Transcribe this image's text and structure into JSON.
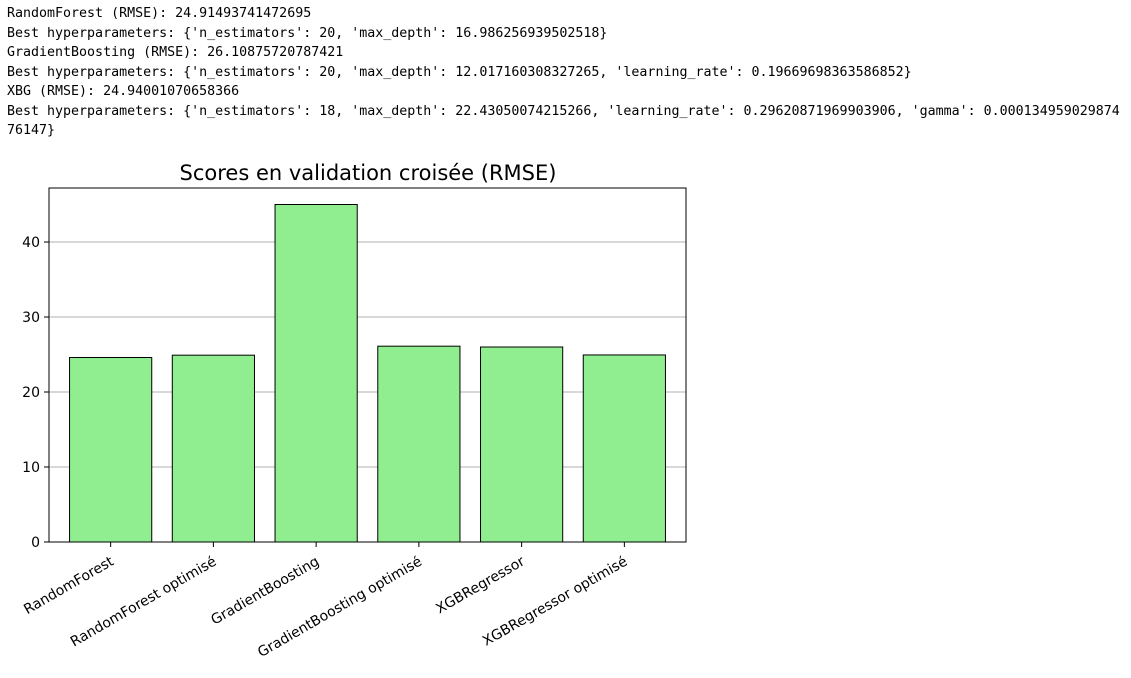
{
  "console": {
    "lines": [
      "RandomForest (RMSE): 24.91493741472695",
      "Best hyperparameters: {'n_estimators': 20, 'max_depth': 16.986256939502518}",
      "GradientBoosting (RMSE): 26.10875720787421",
      "Best hyperparameters: {'n_estimators': 20, 'max_depth': 12.017160308327265, 'learning_rate': 0.19669698363586852}",
      "XBG (RMSE): 24.94001070658366",
      "Best hyperparameters: {'n_estimators': 18, 'max_depth': 22.43050074215266, 'learning_rate': 0.29620871969903906, 'gamma': 0.00013495902987476147}"
    ]
  },
  "chart_data": {
    "type": "bar",
    "title": "Scores en validation croisée (RMSE)",
    "xlabel": "",
    "ylabel": "",
    "categories": [
      "RandomForest",
      "RandomForest optimisé",
      "GradientBoosting",
      "GradientBoosting optimisé",
      "XGBRegressor",
      "XGBRegressor optimisé"
    ],
    "values": [
      24.6,
      24.91,
      45.0,
      26.11,
      26.0,
      24.94
    ],
    "ylim": [
      0,
      47.2
    ],
    "yticks": [
      0,
      10,
      20,
      30,
      40
    ],
    "grid": "y",
    "legend": "none",
    "colors": {
      "bar_fill": "#90ee90",
      "bar_edge": "#000000",
      "grid": "#b0b0b0",
      "axis": "#000000"
    }
  }
}
